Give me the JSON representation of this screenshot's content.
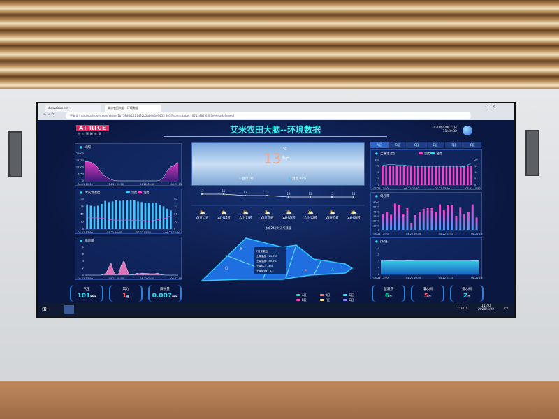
{
  "browser": {
    "tabs": [
      "show.airice.net",
      "艾米农田大脑 - 环境数据"
    ],
    "address": "不安全 | datav.aliyuncs.com/share/1b75884f1411492b5bb4e3d9455 3e3f?spm=datav.10712484.0.0.7ee64a9a9mwof"
  },
  "header": {
    "logo": "AI RICE",
    "logo_sub": "人工智能农业",
    "title": "艾米农田大脑--环境数据",
    "date": "2020年04月22日",
    "time": "11:40:32"
  },
  "x_labels": [
    "04-21 13:50",
    "04-21 20:50",
    "04-22 03:50",
    "04-22 10:50"
  ],
  "left": {
    "light": {
      "title": "光照",
      "unit": "lux",
      "yticks": [
        "0",
        "6250",
        "12500",
        "18750",
        "25000"
      ],
      "max": 25000,
      "values": [
        18000,
        17500,
        16500,
        14000,
        9000,
        5000,
        3000,
        1200,
        200,
        0,
        0,
        0,
        0,
        0,
        0,
        0,
        0,
        0,
        0,
        0,
        300,
        3000,
        9000,
        13000,
        14500,
        17000
      ]
    },
    "atmos": {
      "title": "大气温湿度",
      "legend": [
        "湿度",
        "温度"
      ],
      "unit_left": "%",
      "unit_right": "℃",
      "yticks_left": [
        "0",
        "25",
        "50",
        "75",
        "100"
      ],
      "yticks_right": [
        "0",
        "10",
        "20",
        "30",
        "40"
      ],
      "humidity": [
        82,
        78,
        76,
        78,
        84,
        94,
        90,
        92,
        96,
        94,
        95,
        96,
        96,
        96,
        92,
        90,
        88,
        88,
        88,
        86,
        80,
        76,
        68,
        62
      ],
      "temperature": [
        15,
        15,
        15,
        15,
        14.5,
        14,
        13,
        12,
        12,
        12,
        12,
        12,
        12,
        12,
        12,
        11.5,
        11,
        11,
        11,
        12,
        13,
        14,
        15,
        17
      ]
    },
    "rain": {
      "title": "降雨量",
      "unit": "mm",
      "yticks": [
        "0",
        "2",
        "4",
        "6",
        "8"
      ],
      "max": 8,
      "values": [
        0,
        0,
        0,
        0,
        0,
        0,
        0,
        0.3,
        0.5,
        2,
        3.5,
        1,
        0,
        0.5,
        3,
        4.2,
        2,
        0.3,
        0.1,
        0.2,
        0.6,
        0.4,
        0.6,
        0.5,
        0.5,
        0.4,
        0.4,
        0.4,
        0.6,
        0.3,
        0.1,
        0,
        0,
        0,
        0,
        0,
        0
      ]
    }
  },
  "stats_left": [
    {
      "label": "气压",
      "value": "101",
      "unit": "kPa",
      "color": "#2be0f0"
    },
    {
      "label": "风力",
      "value": "1",
      "unit": "级",
      "color": "#ff5a6a"
    },
    {
      "label": "降水量",
      "value": "0.007",
      "unit": "mm",
      "color": "#2be0f0"
    }
  ],
  "weather": {
    "temp": "13",
    "temp_unit": "℃",
    "condition": "多云",
    "wind": "西风1级",
    "humidity": "湿度 89%",
    "forecast_temps": [
      "13",
      "13",
      "13",
      "13",
      "13",
      "13",
      "13",
      "13"
    ],
    "forecast_times": [
      "22日11时",
      "22日14时",
      "22日17时",
      "22日20时",
      "22日23时",
      "23日02时",
      "23日05时",
      "23日08时"
    ],
    "forecast_label": "未来24小时天气预报"
  },
  "map": {
    "zones": [
      "A",
      "B",
      "C",
      "F",
      "G"
    ],
    "popup": {
      "title": "F区采集站",
      "lines": [
        "土壤温度：14.8°C",
        "土壤湿度：89.6%",
        "土壤EC：1458",
        "土壤pH值：8.3"
      ]
    },
    "legend": [
      {
        "label": "A区",
        "color": "#19e0a0"
      },
      {
        "label": "B区",
        "color": "#ff6a6a"
      },
      {
        "label": "C区",
        "color": "#2be0f0"
      },
      {
        "label": "E区",
        "color": "#ff3fb0"
      },
      {
        "label": "F区",
        "color": "#f7e09a"
      },
      {
        "label": "G区",
        "color": "#8f8cff"
      }
    ]
  },
  "right": {
    "tabs": [
      "A区",
      "B区",
      "C区",
      "E区",
      "F区",
      "G区"
    ],
    "active_tab": 0,
    "soil": {
      "title": "土壤温湿度",
      "legend": [
        "湿度",
        "温度"
      ],
      "unit_left": "%",
      "unit_right": "℃",
      "yticks_left": [
        "0",
        "25",
        "50",
        "75",
        "100"
      ],
      "yticks_right": [
        "0",
        "5",
        "10",
        "15",
        "20"
      ],
      "humidity": [
        78,
        78,
        78,
        78,
        78,
        78,
        78,
        78,
        78,
        78,
        78,
        78,
        78,
        78,
        78,
        78,
        78,
        78,
        78,
        78,
        78,
        78,
        78,
        78,
        78,
        78
      ],
      "temperature": [
        16,
        16,
        16.5,
        16.5,
        16,
        16,
        16,
        15.5,
        15.5,
        15,
        15,
        15,
        15,
        15,
        15,
        15,
        15,
        15,
        15,
        15,
        15,
        15,
        15,
        14.5,
        16,
        17.5
      ]
    },
    "ec": {
      "title": "电导率",
      "unit": "us/cm",
      "yticks": [
        "0",
        "1000",
        "2000",
        "3000",
        "4000",
        "5000",
        "6000"
      ],
      "max": 6000,
      "values": [
        3500,
        4000,
        3400,
        5800,
        5500,
        3600,
        4800,
        1600,
        3300,
        4000,
        4700,
        4800,
        4800,
        3900,
        5600,
        4400,
        5500,
        5500,
        3100,
        4900,
        3500,
        3900,
        5600,
        2800
      ]
    },
    "ph": {
      "title": "pH值",
      "yticks": [
        "0",
        "4",
        "7",
        "11",
        "14"
      ],
      "max": 14,
      "values": [
        7.2,
        7.2,
        7.3,
        7.3,
        7.4,
        7.4,
        7.3,
        7.3,
        7.2,
        7.2,
        7.2,
        7.2,
        7.2,
        7.2,
        7.2,
        7.2,
        7.2,
        7.2,
        7.2,
        7.2,
        7.2,
        7.2,
        7.3,
        7.3
      ]
    }
  },
  "stats_right": [
    {
      "label": "监测点",
      "value": "6",
      "unit": "个",
      "color": "#19e0a0"
    },
    {
      "label": "灌水阀",
      "value": "5",
      "unit": "个",
      "color": "#ff5a6a"
    },
    {
      "label": "排水阀",
      "value": "2",
      "unit": "个",
      "color": "#2be0f0"
    }
  ],
  "taskbar": {
    "time": "11:40",
    "date": "2020/4/22"
  }
}
